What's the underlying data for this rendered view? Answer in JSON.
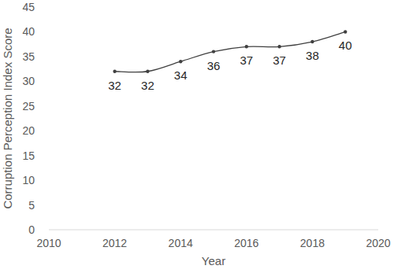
{
  "chart_data": {
    "type": "line",
    "x_label": "Year",
    "y_label": "Corruption Perception Index Score",
    "x": [
      2012,
      2013,
      2014,
      2015,
      2016,
      2017,
      2018,
      2019
    ],
    "values": [
      32,
      32,
      34,
      36,
      37,
      37,
      38,
      40
    ],
    "color": "#404040",
    "marker": "circle",
    "data_labels": true,
    "grid": false,
    "xlim": [
      2010,
      2020
    ],
    "xticks": [
      2010,
      2012,
      2014,
      2016,
      2018,
      2020
    ],
    "ylim": [
      0,
      45
    ],
    "yticks": [
      0,
      5,
      10,
      15,
      20,
      25,
      30,
      35,
      40,
      45
    ]
  }
}
